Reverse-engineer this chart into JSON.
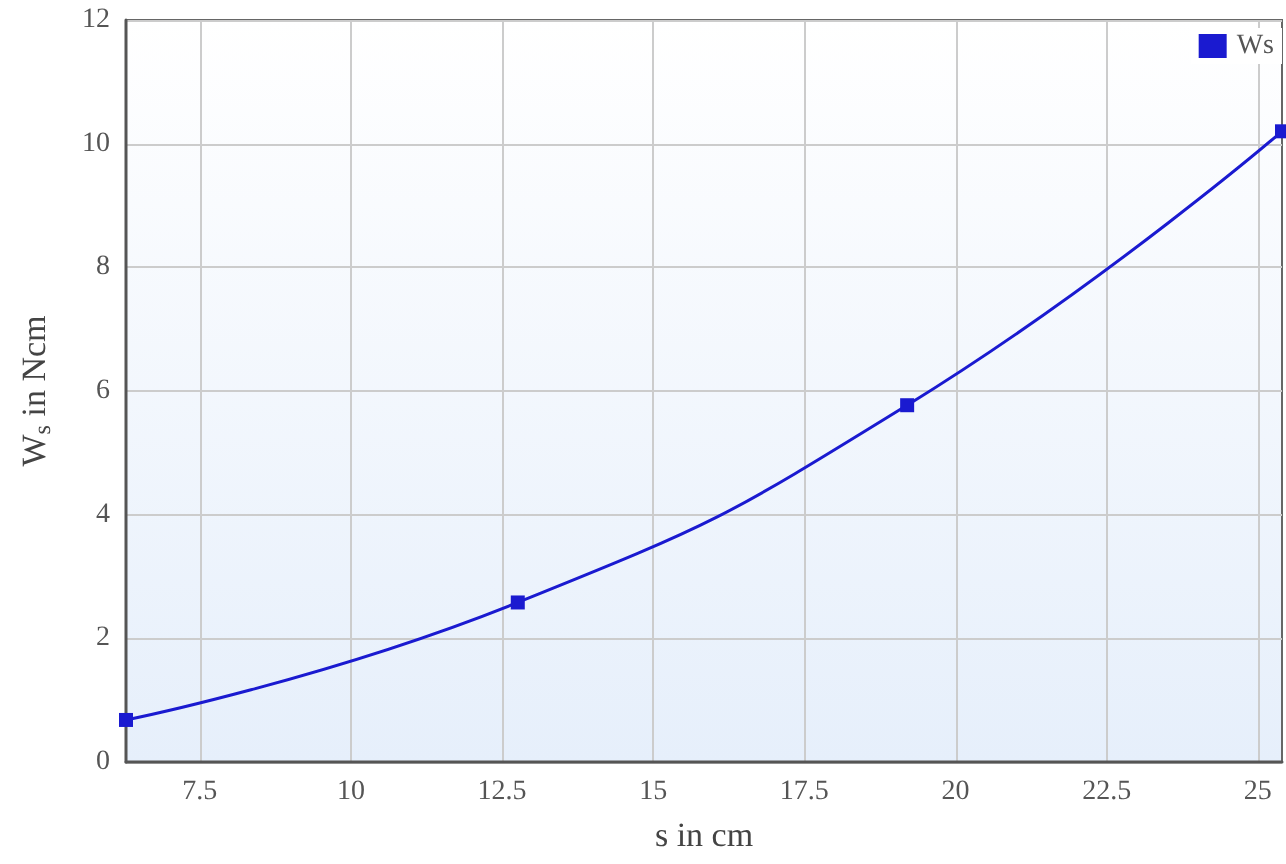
{
  "chart_data": {
    "type": "line",
    "xlabel": "s in cm",
    "ylabel": "W$_{s}$ in Ncm",
    "x": [
      6.28,
      12.76,
      19.2,
      25.4
    ],
    "series": [
      {
        "name": "Ws",
        "color": "#1a1ad0",
        "values": [
          0.68,
          2.58,
          5.77,
          10.2
        ]
      }
    ],
    "xlim": [
      6.28,
      25.4
    ],
    "xticks": [
      7.5,
      10,
      12.5,
      15,
      17.5,
      20,
      22.5,
      25
    ],
    "ylim": [
      0,
      12
    ],
    "yticks": [
      0,
      2,
      4,
      6,
      8,
      10,
      12
    ],
    "grid": true,
    "legend": "top right",
    "marker": "square",
    "line_style": "solid"
  }
}
